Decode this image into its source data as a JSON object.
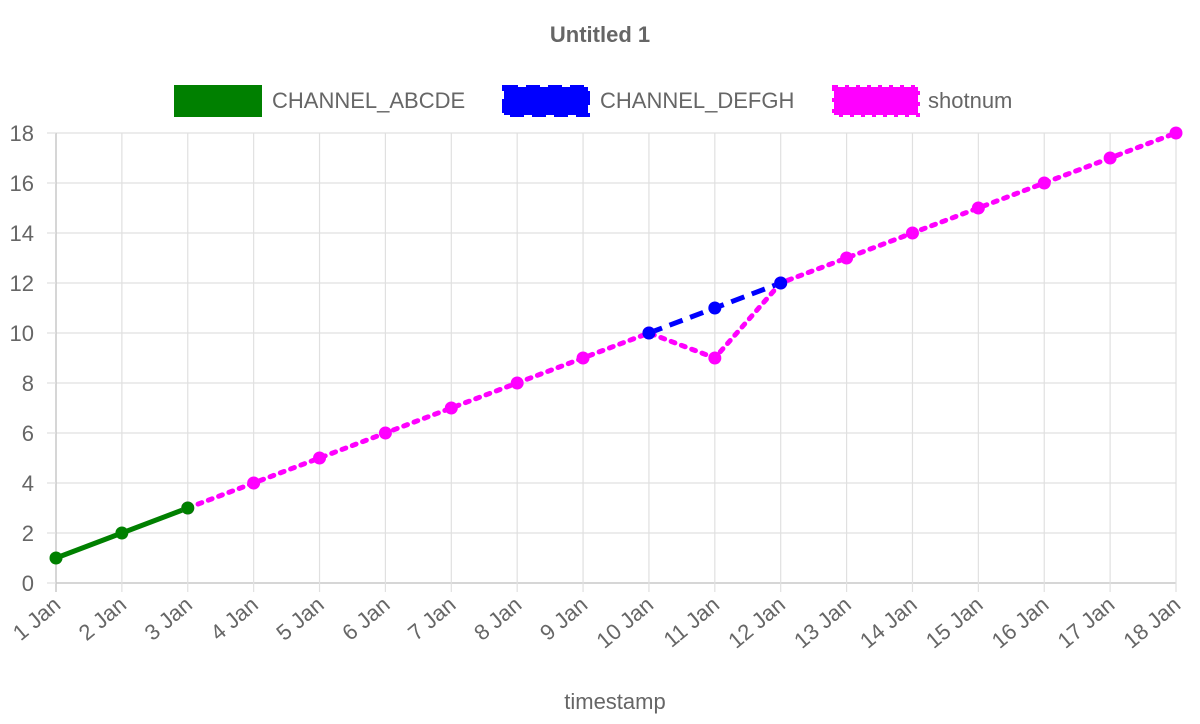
{
  "chart_data": {
    "type": "line",
    "title": "Untitled 1",
    "xlabel": "timestamp",
    "ylabel": "",
    "x": [
      "1 Jan",
      "2 Jan",
      "3 Jan",
      "4 Jan",
      "5 Jan",
      "6 Jan",
      "7 Jan",
      "8 Jan",
      "9 Jan",
      "10 Jan",
      "11 Jan",
      "12 Jan",
      "13 Jan",
      "14 Jan",
      "15 Jan",
      "16 Jan",
      "17 Jan",
      "18 Jan"
    ],
    "ylim": [
      0,
      18
    ],
    "yticks": [
      0,
      2,
      4,
      6,
      8,
      10,
      12,
      14,
      16,
      18
    ],
    "grid": true,
    "legend_position": "top",
    "series": [
      {
        "name": "CHANNEL_ABCDE",
        "color": "#008000",
        "line_style": "solid",
        "points": [
          [
            "1 Jan",
            1
          ],
          [
            "2 Jan",
            2
          ],
          [
            "3 Jan",
            3
          ]
        ]
      },
      {
        "name": "CHANNEL_DEFGH",
        "color": "#0000ff",
        "line_style": "dashed",
        "points": [
          [
            "10 Jan",
            10
          ],
          [
            "11 Jan",
            11
          ],
          [
            "12 Jan",
            12
          ]
        ]
      },
      {
        "name": "shotnum",
        "color": "#ff00ff",
        "line_style": "dotted",
        "points": [
          [
            "3 Jan",
            3
          ],
          [
            "4 Jan",
            4
          ],
          [
            "5 Jan",
            5
          ],
          [
            "6 Jan",
            6
          ],
          [
            "7 Jan",
            7
          ],
          [
            "8 Jan",
            8
          ],
          [
            "9 Jan",
            9
          ],
          [
            "10 Jan",
            10
          ],
          [
            "11 Jan",
            9
          ],
          [
            "12 Jan",
            12
          ],
          [
            "13 Jan",
            13
          ],
          [
            "14 Jan",
            14
          ],
          [
            "15 Jan",
            15
          ],
          [
            "16 Jan",
            16
          ],
          [
            "17 Jan",
            17
          ],
          [
            "18 Jan",
            18
          ]
        ]
      }
    ]
  }
}
